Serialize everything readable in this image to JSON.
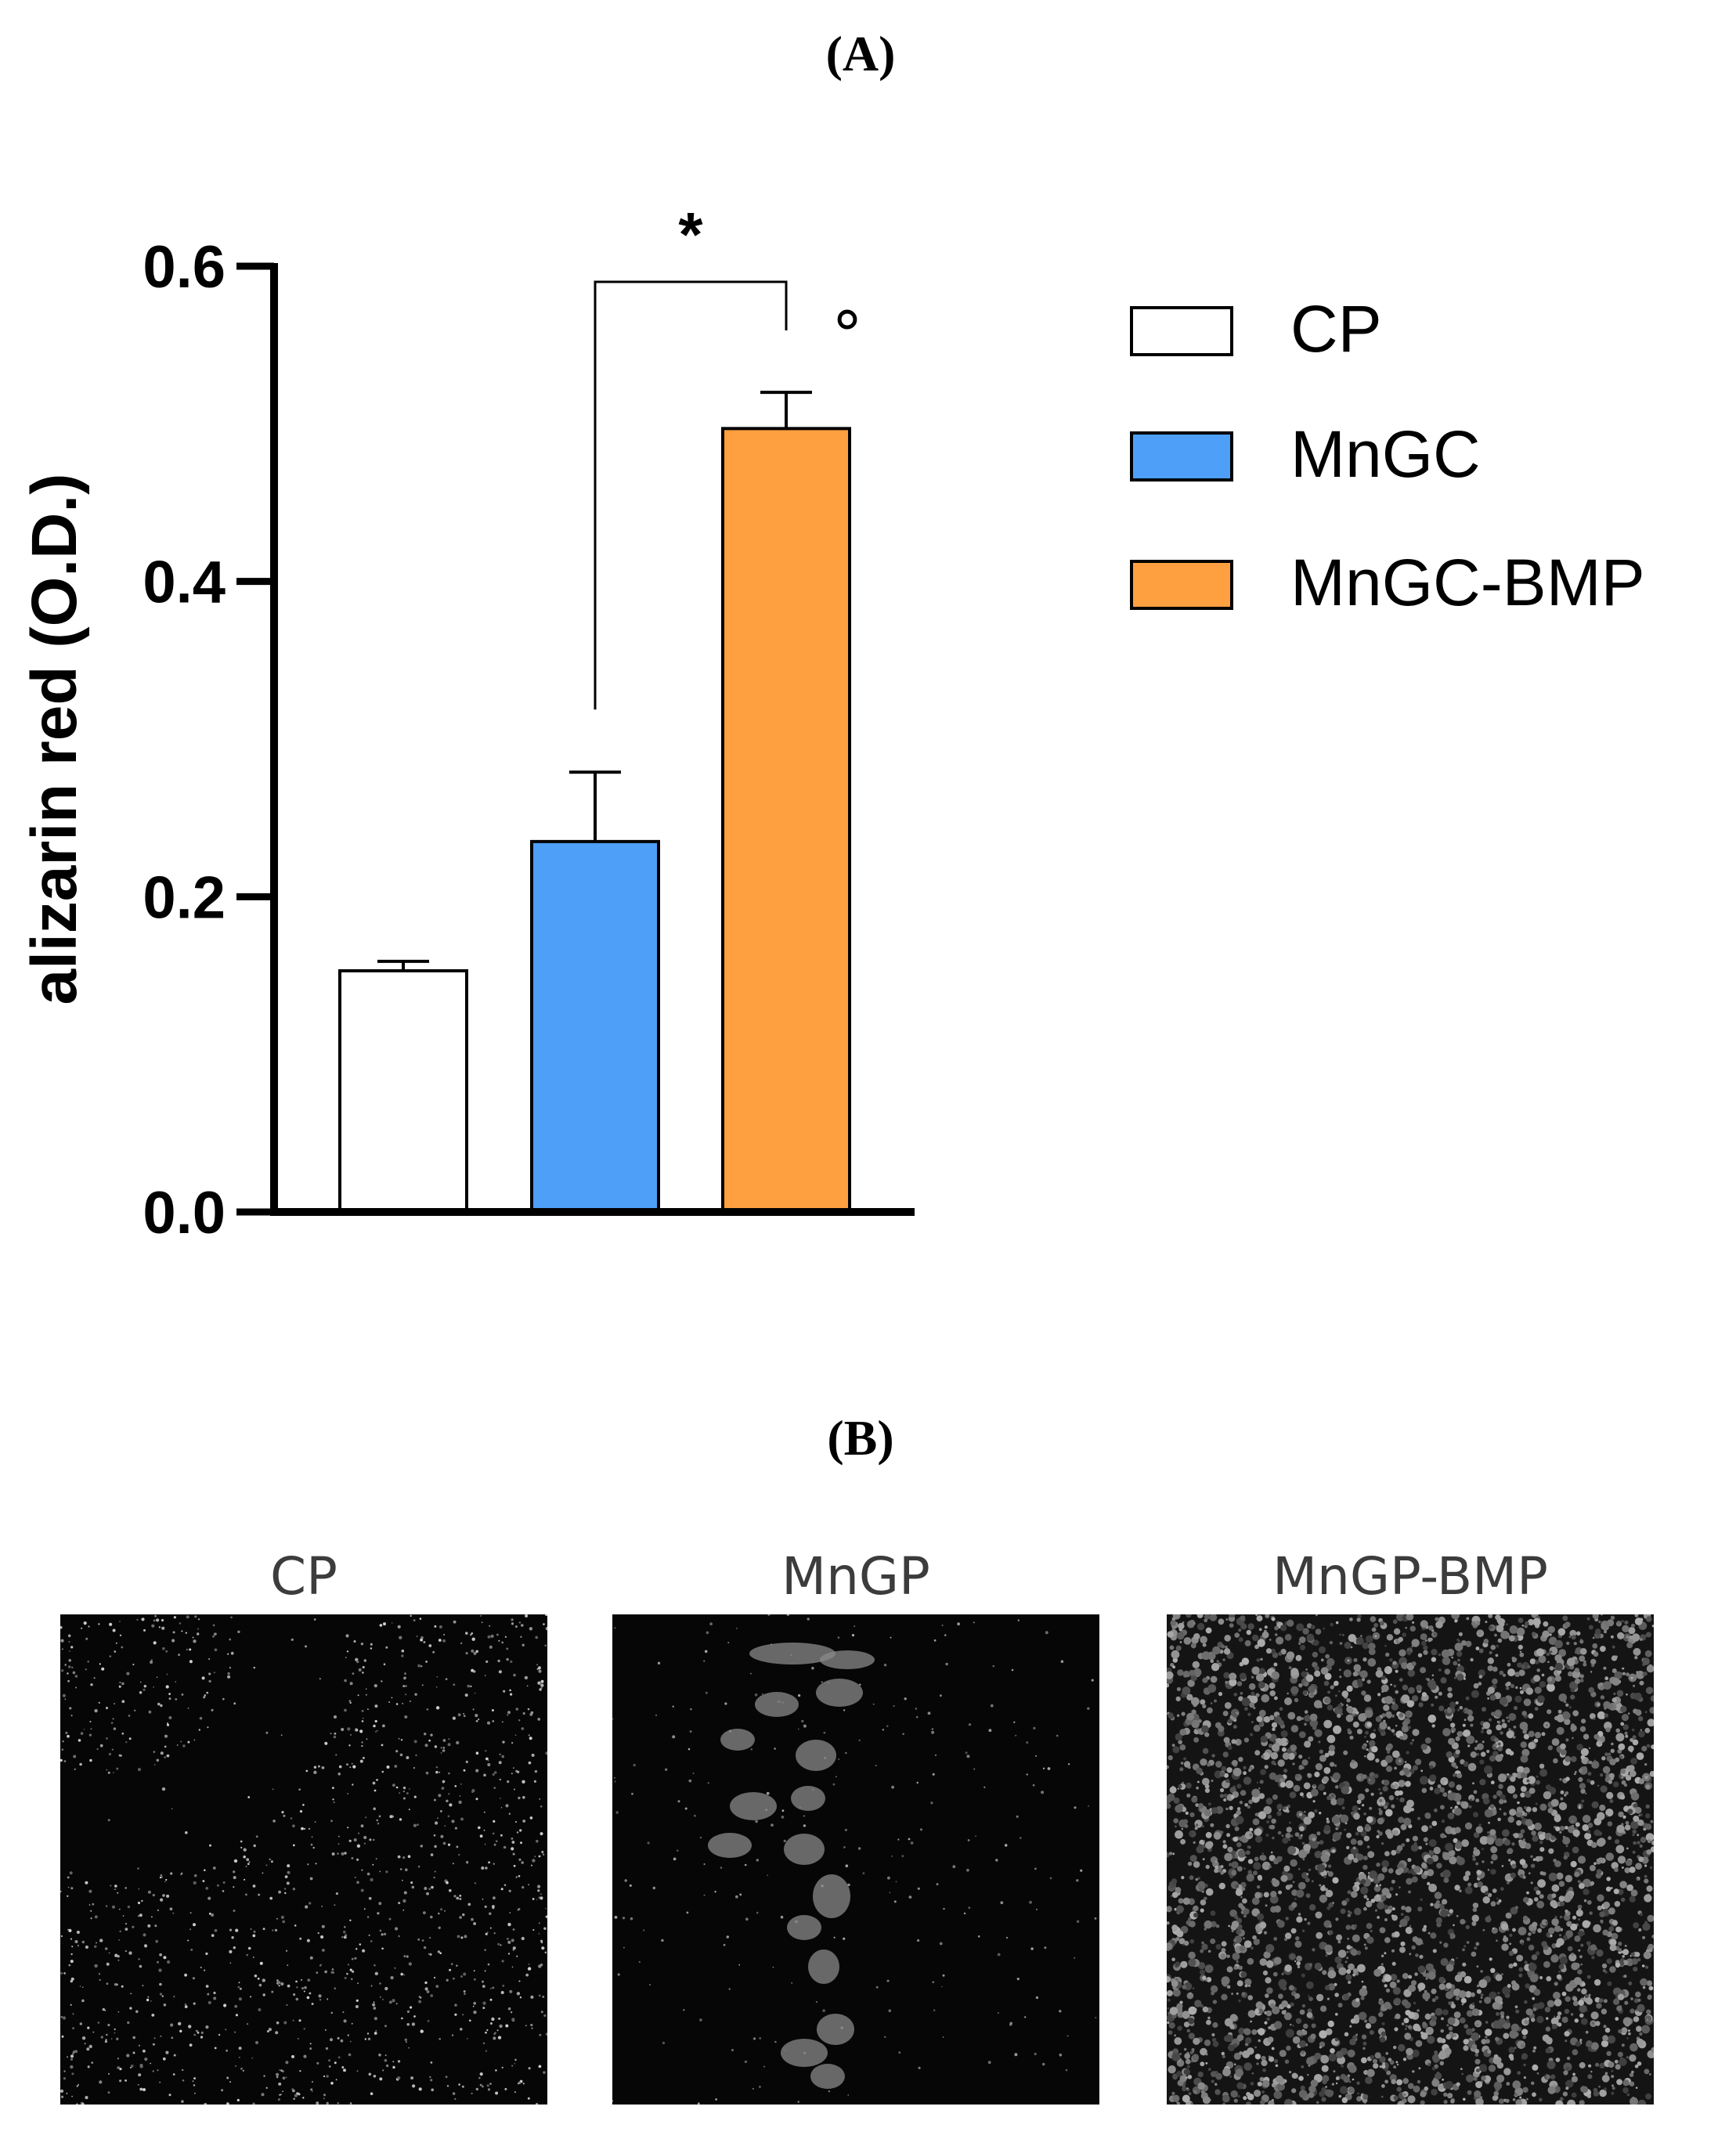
{
  "panel_a": {
    "label": "(A)"
  },
  "panel_b": {
    "label": "(B)",
    "images": [
      {
        "title": "CP"
      },
      {
        "title": "MnGP"
      },
      {
        "title": "MnGP-BMP"
      }
    ]
  },
  "chart_data": {
    "type": "bar",
    "title": "",
    "xlabel": "",
    "ylabel": "alizarin red (O.D.)",
    "ylim": [
      0,
      0.6
    ],
    "yticks": [
      0.0,
      0.2,
      0.4,
      0.6
    ],
    "ytick_labels": [
      "0.0",
      "0.2",
      "0.4",
      "0.6"
    ],
    "categories": [
      "CP",
      "MnGC",
      "MnGC-BMP"
    ],
    "values": [
      0.153,
      0.235,
      0.497
    ],
    "errors": [
      0.006,
      0.044,
      0.023
    ],
    "colors": [
      "#ffffff",
      "#4d9ff8",
      "#ffa040"
    ],
    "legend": [
      "CP",
      "MnGC",
      "MnGC-BMP"
    ],
    "legend_position": "right",
    "significance": {
      "from": "MnGC",
      "to": "MnGC-BMP",
      "label": "*"
    },
    "annotation": {
      "bar": "MnGC-BMP",
      "label": "°"
    }
  }
}
